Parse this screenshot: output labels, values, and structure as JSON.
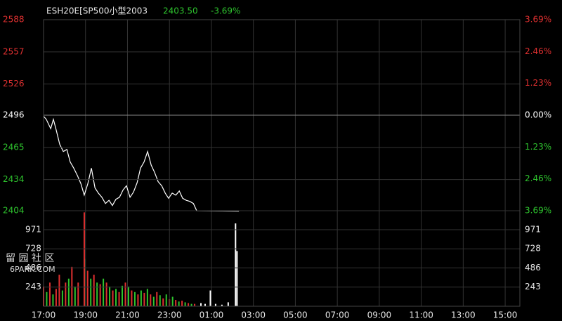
{
  "chart_data": [
    {
      "type": "line",
      "title": "ESH20E[SP500小型2003",
      "last": "2403.50",
      "change": "-3.69%",
      "color": "#ffffff",
      "up_color": "#e03030",
      "down_color": "#2ec42e",
      "base": 2496,
      "x": [
        0,
        0.13,
        0.34,
        0.47,
        0.6,
        0.77,
        0.94,
        1.11,
        1.27,
        1.44,
        1.61,
        1.78,
        1.94,
        2.11,
        2.28,
        2.45,
        2.61,
        2.78,
        2.95,
        3.12,
        3.28,
        3.45,
        3.62,
        3.79,
        3.95,
        4.12,
        4.29,
        4.46,
        4.62,
        4.79,
        4.96,
        5.13,
        5.29,
        5.46,
        5.63,
        5.8,
        5.96,
        6.13,
        6.3,
        6.47,
        6.63,
        6.8,
        6.97,
        7.14,
        7.3,
        9.31
      ],
      "values": [
        2495,
        2492,
        2483,
        2492,
        2482,
        2468,
        2461,
        2463,
        2451,
        2445,
        2438,
        2430,
        2419,
        2430,
        2445,
        2426,
        2421,
        2417,
        2411,
        2414,
        2409,
        2415,
        2417,
        2424,
        2428,
        2417,
        2422,
        2431,
        2445,
        2451,
        2461,
        2448,
        2441,
        2432,
        2428,
        2421,
        2416,
        2421,
        2419,
        2423,
        2416,
        2414,
        2413,
        2411,
        2404,
        2403.5
      ],
      "xlim": [
        0,
        22.7
      ],
      "ylim": [
        2404,
        2588
      ],
      "yticks": [
        2588,
        2557,
        2526,
        2496,
        2465,
        2434,
        2404
      ],
      "y2lim": [
        -3.69,
        3.69
      ],
      "y2ticks": [
        {
          "value": 3.69,
          "label": "3.69%"
        },
        {
          "value": 2.46,
          "label": "2.46%"
        },
        {
          "value": 1.23,
          "label": "1.23%"
        },
        {
          "value": 0,
          "label": "0.00%"
        },
        {
          "value": -1.23,
          "label": "1.23%"
        },
        {
          "value": -2.46,
          "label": "2.46%"
        },
        {
          "value": -3.69,
          "label": "3.69%"
        }
      ],
      "grid": true
    },
    {
      "type": "bar",
      "x": [
        0,
        0.15,
        0.3,
        0.45,
        0.6,
        0.75,
        0.9,
        1.05,
        1.2,
        1.35,
        1.5,
        1.65,
        1.94,
        1.95,
        2.1,
        2.25,
        2.4,
        2.55,
        2.7,
        2.85,
        3.0,
        3.15,
        3.3,
        3.45,
        3.6,
        3.75,
        3.9,
        4.05,
        4.2,
        4.35,
        4.5,
        4.65,
        4.8,
        4.95,
        5.1,
        5.25,
        5.4,
        5.55,
        5.7,
        5.85,
        6.0,
        6.15,
        6.3,
        6.45,
        6.6,
        6.75,
        6.9,
        7.05,
        7.2,
        7.5,
        7.7,
        7.95,
        8.2,
        8.5,
        8.8,
        9.15,
        9.22
      ],
      "values": [
        250,
        180,
        300,
        150,
        220,
        400,
        200,
        300,
        350,
        500,
        250,
        300,
        1190,
        600,
        450,
        350,
        400,
        300,
        280,
        350,
        300,
        250,
        200,
        220,
        180,
        260,
        300,
        250,
        200,
        180,
        150,
        200,
        170,
        220,
        150,
        120,
        180,
        140,
        100,
        150,
        90,
        120,
        80,
        60,
        70,
        50,
        40,
        30,
        30,
        40,
        30,
        200,
        30,
        20,
        50,
        1050,
        700
      ],
      "colors": [
        "#e03030",
        "#2ec42e",
        "#e03030",
        "#2ec42e",
        "#e03030",
        "#e03030",
        "#2ec42e",
        "#e03030",
        "#2ec42e",
        "#e03030",
        "#2ec42e",
        "#e03030",
        "#e03030",
        "#2ec42e",
        "#e03030",
        "#2ec42e",
        "#e03030",
        "#2ec42e",
        "#e03030",
        "#2ec42e",
        "#e03030",
        "#2ec42e",
        "#e03030",
        "#2ec42e",
        "#e03030",
        "#2ec42e",
        "#e03030",
        "#2ec42e",
        "#e03030",
        "#2ec42e",
        "#e03030",
        "#2ec42e",
        "#e03030",
        "#2ec42e",
        "#e03030",
        "#2ec42e",
        "#e03030",
        "#2ec42e",
        "#e03030",
        "#2ec42e",
        "#e03030",
        "#2ec42e",
        "#e03030",
        "#2ec42e",
        "#e03030",
        "#2ec42e",
        "#e03030",
        "#2ec42e",
        "#e03030",
        "#ffffff",
        "#ffffff",
        "#ffffff",
        "#ffffff",
        "#ffffff",
        "#ffffff",
        "#ffffff",
        "#ffffff"
      ],
      "xlim": [
        0,
        22.7
      ],
      "ylim": [
        0,
        1211
      ],
      "yticks": [
        243,
        486,
        728,
        971
      ],
      "xticks": [
        {
          "value": 0,
          "label": "17:00"
        },
        {
          "value": 2,
          "label": "19:00"
        },
        {
          "value": 4,
          "label": "21:00"
        },
        {
          "value": 6,
          "label": "23:00"
        },
        {
          "value": 8,
          "label": "01:00"
        },
        {
          "value": 10,
          "label": "03:00"
        },
        {
          "value": 12,
          "label": "05:00"
        },
        {
          "value": 14,
          "label": "07:00"
        },
        {
          "value": 16,
          "label": "09:00"
        },
        {
          "value": 18,
          "label": "11:00"
        },
        {
          "value": 20,
          "label": "13:00"
        },
        {
          "value": 22,
          "label": "15:00"
        }
      ],
      "grid": true
    }
  ],
  "watermark": {
    "cn": "留 园 社 区",
    "site": "6PARK.COM"
  }
}
